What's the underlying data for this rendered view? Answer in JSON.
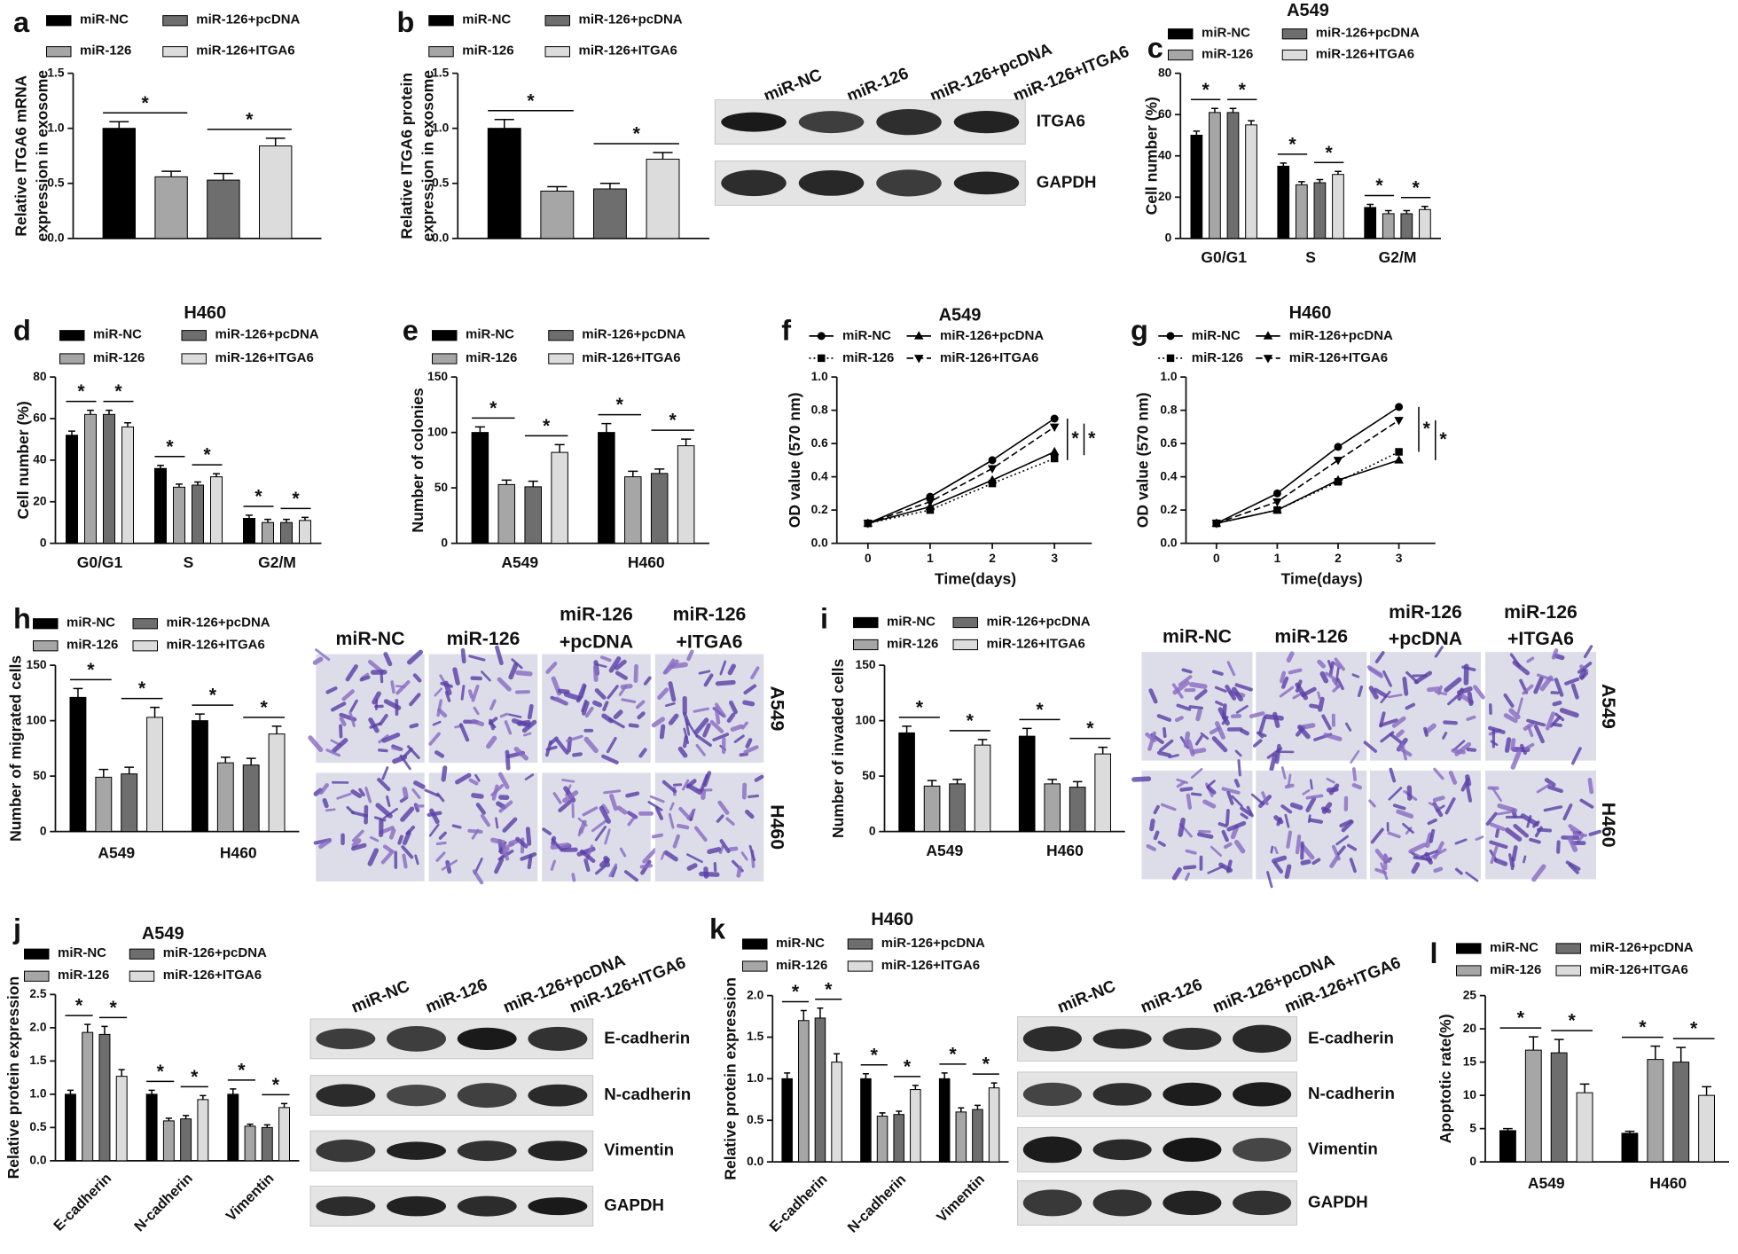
{
  "chart_data": [
    {
      "type": "bar",
      "panel_label": "a",
      "y_label": [
        "Relative ITGA6 mRNA",
        "expression in exosome"
      ],
      "categories": [
        null
      ],
      "series": [
        {
          "name": "miR-NC",
          "color": "#000000",
          "values": [
            1.0
          ],
          "errors": [
            0.06
          ]
        },
        {
          "name": "miR-126",
          "color": "#a6a6a6",
          "values": [
            0.56
          ],
          "errors": [
            0.05
          ]
        },
        {
          "name": "miR-126+pcDNA",
          "color": "#6e6e6e",
          "values": [
            0.53
          ],
          "errors": [
            0.06
          ]
        },
        {
          "name": "miR-126+ITGA6",
          "color": "#dcdcdc",
          "values": [
            0.84
          ],
          "errors": [
            0.07
          ]
        }
      ],
      "ylim": [
        0,
        1.5
      ],
      "yticks": [
        {
          "value": 0,
          "label": "0.0"
        },
        0.5,
        {
          "value": 1,
          "label": "1.0"
        },
        1.5
      ],
      "significance_label": "*"
    },
    {
      "type": "bar",
      "panel_label": "b",
      "y_label": [
        "Relative ITGA6 protein",
        "expression in exosome"
      ],
      "categories": [
        null
      ],
      "series": [
        {
          "name": "miR-NC",
          "color": "#000000",
          "values": [
            1.0
          ],
          "errors": [
            0.08
          ]
        },
        {
          "name": "miR-126",
          "color": "#a6a6a6",
          "values": [
            0.43
          ],
          "errors": [
            0.04
          ]
        },
        {
          "name": "miR-126+pcDNA",
          "color": "#6e6e6e",
          "values": [
            0.45
          ],
          "errors": [
            0.05
          ]
        },
        {
          "name": "miR-126+ITGA6",
          "color": "#dcdcdc",
          "values": [
            0.72
          ],
          "errors": [
            0.06
          ]
        }
      ],
      "ylim": [
        0,
        1.5
      ],
      "yticks": [
        {
          "value": 0,
          "label": "0.0"
        },
        0.5,
        {
          "value": 1,
          "label": "1.0"
        },
        1.5
      ],
      "significance_label": "*",
      "blot": {
        "lanes": [
          "miR-NC",
          "miR-126",
          "miR-126+pcDNA",
          "miR-126+ITGA6"
        ],
        "bands": [
          "ITGA6",
          "GAPDH"
        ]
      }
    },
    {
      "type": "bar",
      "panel_label": "c",
      "title": "A549",
      "y_label": "Cell number (%)",
      "categories": [
        "G0/G1",
        "S",
        "G2/M"
      ],
      "series": [
        {
          "name": "miR-NC",
          "color": "#000000",
          "values": [
            50,
            35,
            15
          ],
          "errors": [
            2,
            1.5,
            1.5
          ]
        },
        {
          "name": "miR-126",
          "color": "#a6a6a6",
          "values": [
            61,
            26,
            12
          ],
          "errors": [
            2,
            1.5,
            1.5
          ]
        },
        {
          "name": "miR-126+pcDNA",
          "color": "#6e6e6e",
          "values": [
            61,
            27,
            12
          ],
          "errors": [
            2,
            1.5,
            1.5
          ]
        },
        {
          "name": "miR-126+ITGA6",
          "color": "#dcdcdc",
          "values": [
            55,
            31,
            14
          ],
          "errors": [
            2,
            1.5,
            1.5
          ]
        }
      ],
      "ylim": [
        0,
        80
      ],
      "yticks": [
        0,
        20,
        40,
        60,
        80
      ],
      "significance_label": "*"
    },
    {
      "type": "bar",
      "panel_label": "d",
      "title": "H460",
      "y_label": "Cell number (%)",
      "categories": [
        "G0/G1",
        "S",
        "G2/M"
      ],
      "series": [
        {
          "name": "miR-NC",
          "color": "#000000",
          "values": [
            52,
            36,
            12
          ],
          "errors": [
            2,
            1.5,
            1.5
          ]
        },
        {
          "name": "miR-126",
          "color": "#a6a6a6",
          "values": [
            62,
            27,
            10
          ],
          "errors": [
            2,
            1.5,
            1.5
          ]
        },
        {
          "name": "miR-126+pcDNA",
          "color": "#6e6e6e",
          "values": [
            62,
            28,
            10
          ],
          "errors": [
            2,
            1.5,
            1.5
          ]
        },
        {
          "name": "miR-126+ITGA6",
          "color": "#dcdcdc",
          "values": [
            56,
            32,
            11
          ],
          "errors": [
            2,
            1.5,
            1.5
          ]
        }
      ],
      "ylim": [
        0,
        80
      ],
      "yticks": [
        0,
        20,
        40,
        60,
        80
      ],
      "significance_label": "*"
    },
    {
      "type": "bar",
      "panel_label": "e",
      "y_label": "Number of colonies",
      "categories": [
        "A549",
        "H460"
      ],
      "series": [
        {
          "name": "miR-NC",
          "color": "#000000",
          "values": [
            100,
            100
          ],
          "errors": [
            5,
            8
          ]
        },
        {
          "name": "miR-126",
          "color": "#a6a6a6",
          "values": [
            53,
            60
          ],
          "errors": [
            4,
            5
          ]
        },
        {
          "name": "miR-126+pcDNA",
          "color": "#6e6e6e",
          "values": [
            51,
            63
          ],
          "errors": [
            5,
            4
          ]
        },
        {
          "name": "miR-126+ITGA6",
          "color": "#dcdcdc",
          "values": [
            82,
            88
          ],
          "errors": [
            7,
            6
          ]
        }
      ],
      "ylim": [
        0,
        150
      ],
      "yticks": [
        0,
        50,
        100,
        150
      ],
      "significance_label": "*"
    },
    {
      "type": "line",
      "panel_label": "f",
      "title": "A549",
      "y_label": "OD value (570 nm)",
      "x_label": "Time(days)",
      "x": [
        0,
        1,
        2,
        3
      ],
      "series": [
        {
          "name": "miR-NC",
          "color": "#000000",
          "marker": "circle",
          "linestyle": "solid",
          "values": [
            0.12,
            0.28,
            0.5,
            0.75
          ]
        },
        {
          "name": "miR-126",
          "color": "#000000",
          "marker": "square",
          "linestyle": "dotted",
          "values": [
            0.12,
            0.2,
            0.36,
            0.51
          ]
        },
        {
          "name": "miR-126+pcDNA",
          "color": "#000000",
          "marker": "triangle",
          "linestyle": "solid",
          "values": [
            0.12,
            0.22,
            0.38,
            0.55
          ]
        },
        {
          "name": "miR-126+ITGA6",
          "color": "#000000",
          "marker": "triangle-down",
          "linestyle": "dashed",
          "values": [
            0.12,
            0.25,
            0.45,
            0.7
          ]
        }
      ],
      "xlim": [
        -0.5,
        3.6
      ],
      "xticks": [
        0,
        1,
        2,
        3
      ],
      "ylim": [
        0,
        1
      ],
      "yticks": [
        {
          "value": 0,
          "label": "0.0"
        },
        0.2,
        0.4,
        0.6,
        0.8,
        {
          "value": 1,
          "label": "1.0"
        }
      ],
      "significance_label": "*"
    },
    {
      "type": "line",
      "panel_label": "g",
      "title": "H460",
      "y_label": "OD value (570 nm)",
      "x_label": "Time(days)",
      "x": [
        0,
        1,
        2,
        3
      ],
      "series": [
        {
          "name": "miR-NC",
          "color": "#000000",
          "marker": "circle",
          "linestyle": "solid",
          "values": [
            0.12,
            0.3,
            0.58,
            0.82
          ]
        },
        {
          "name": "miR-126",
          "color": "#000000",
          "marker": "square",
          "linestyle": "dotted",
          "values": [
            0.12,
            0.2,
            0.37,
            0.55
          ]
        },
        {
          "name": "miR-126+pcDNA",
          "color": "#000000",
          "marker": "triangle",
          "linestyle": "solid",
          "values": [
            0.12,
            0.2,
            0.38,
            0.5
          ]
        },
        {
          "name": "miR-126+ITGA6",
          "color": "#000000",
          "marker": "triangle-down",
          "linestyle": "dashed",
          "values": [
            0.12,
            0.25,
            0.5,
            0.74
          ]
        }
      ],
      "xlim": [
        -0.5,
        3.6
      ],
      "xticks": [
        0,
        1,
        2,
        3
      ],
      "ylim": [
        0,
        1
      ],
      "yticks": [
        {
          "value": 0,
          "label": "0.0"
        },
        0.2,
        0.4,
        0.6,
        0.8,
        {
          "value": 1,
          "label": "1.0"
        }
      ],
      "significance_label": "*"
    },
    {
      "type": "bar",
      "panel_label": "h",
      "y_label": "Number of migrated cells",
      "categories": [
        "A549",
        "H460"
      ],
      "series": [
        {
          "name": "miR-NC",
          "color": "#000000",
          "values": [
            121,
            100
          ],
          "errors": [
            8,
            6
          ]
        },
        {
          "name": "miR-126",
          "color": "#a6a6a6",
          "values": [
            49,
            62
          ],
          "errors": [
            7,
            5
          ]
        },
        {
          "name": "miR-126+pcDNA",
          "color": "#6e6e6e",
          "values": [
            52,
            60
          ],
          "errors": [
            6,
            6
          ]
        },
        {
          "name": "miR-126+ITGA6",
          "color": "#dcdcdc",
          "values": [
            103,
            88
          ],
          "errors": [
            9,
            7
          ]
        }
      ],
      "ylim": [
        0,
        150
      ],
      "yticks": [
        0,
        50,
        100,
        150
      ],
      "significance_label": "*",
      "micrographs": {
        "columns": [
          [
            "miR-NC"
          ],
          [
            "miR-126"
          ],
          [
            "miR-126",
            "+pcDNA"
          ],
          [
            "miR-126",
            "+ITGA6"
          ]
        ],
        "rows": [
          "A549",
          "H460"
        ]
      }
    },
    {
      "type": "bar",
      "panel_label": "i",
      "y_label": "Number of invaded cells",
      "categories": [
        "A549",
        "H460"
      ],
      "series": [
        {
          "name": "miR-NC",
          "color": "#000000",
          "values": [
            89,
            86
          ],
          "errors": [
            6,
            7
          ]
        },
        {
          "name": "miR-126",
          "color": "#a6a6a6",
          "values": [
            41,
            43
          ],
          "errors": [
            5,
            4
          ]
        },
        {
          "name": "miR-126+pcDNA",
          "color": "#6e6e6e",
          "values": [
            43,
            40
          ],
          "errors": [
            4,
            5
          ]
        },
        {
          "name": "miR-126+ITGA6",
          "color": "#dcdcdc",
          "values": [
            78,
            70
          ],
          "errors": [
            5,
            6
          ]
        }
      ],
      "ylim": [
        0,
        150
      ],
      "yticks": [
        0,
        50,
        100,
        150
      ],
      "significance_label": "*",
      "micrographs": {
        "columns": [
          [
            "miR-NC"
          ],
          [
            "miR-126"
          ],
          [
            "miR-126",
            "+pcDNA"
          ],
          [
            "miR-126",
            "+ITGA6"
          ]
        ],
        "rows": [
          "A549",
          "H460"
        ]
      }
    },
    {
      "type": "bar",
      "panel_label": "j",
      "title": "A549",
      "y_label": "Relative protein expression",
      "categories": [
        "E-cadherin",
        "N-cadherin",
        "Vimentin"
      ],
      "series": [
        {
          "name": "miR-NC",
          "color": "#000000",
          "values": [
            1.0,
            1.0,
            1.0
          ],
          "errors": [
            0.06,
            0.06,
            0.08
          ]
        },
        {
          "name": "miR-126",
          "color": "#a6a6a6",
          "values": [
            1.93,
            0.6,
            0.52
          ],
          "errors": [
            0.12,
            0.04,
            0.03
          ]
        },
        {
          "name": "miR-126+pcDNA",
          "color": "#6e6e6e",
          "values": [
            1.9,
            0.63,
            0.5
          ],
          "errors": [
            0.12,
            0.05,
            0.04
          ]
        },
        {
          "name": "miR-126+ITGA6",
          "color": "#dcdcdc",
          "values": [
            1.27,
            0.92,
            0.8
          ],
          "errors": [
            0.1,
            0.06,
            0.06
          ]
        }
      ],
      "ylim": [
        0,
        2.5
      ],
      "yticks": [
        {
          "value": 0,
          "label": "0.0"
        },
        0.5,
        {
          "value": 1,
          "label": "1.0"
        },
        1.5,
        {
          "value": 2,
          "label": "2.0"
        },
        2.5
      ],
      "significance_label": "*",
      "blot": {
        "lanes": [
          "miR-NC",
          "miR-126",
          "miR-126+pcDNA",
          "miR-126+ITGA6"
        ],
        "bands": [
          "E-cadherin",
          "N-cadherin",
          "Vimentin",
          "GAPDH"
        ]
      }
    },
    {
      "type": "bar",
      "panel_label": "k",
      "title": "H460",
      "y_label": "Relative protein expression",
      "categories": [
        "E-cadherin",
        "N-cadherin",
        "Vimentin"
      ],
      "series": [
        {
          "name": "miR-NC",
          "color": "#000000",
          "values": [
            1.0,
            1.0,
            1.0
          ],
          "errors": [
            0.07,
            0.06,
            0.07
          ]
        },
        {
          "name": "miR-126",
          "color": "#a6a6a6",
          "values": [
            1.7,
            0.55,
            0.6
          ],
          "errors": [
            0.12,
            0.04,
            0.05
          ]
        },
        {
          "name": "miR-126+pcDNA",
          "color": "#6e6e6e",
          "values": [
            1.73,
            0.57,
            0.63
          ],
          "errors": [
            0.12,
            0.04,
            0.05
          ]
        },
        {
          "name": "miR-126+ITGA6",
          "color": "#dcdcdc",
          "values": [
            1.2,
            0.87,
            0.89
          ],
          "errors": [
            0.1,
            0.05,
            0.06
          ]
        }
      ],
      "ylim": [
        0,
        2
      ],
      "yticks": [
        {
          "value": 0,
          "label": "0.0"
        },
        0.5,
        {
          "value": 1,
          "label": "1.0"
        },
        1.5,
        {
          "value": 2,
          "label": "2.0"
        }
      ],
      "significance_label": "*",
      "blot": {
        "lanes": [
          "miR-NC",
          "miR-126",
          "miR-126+pcDNA",
          "miR-126+ITGA6"
        ],
        "bands": [
          "E-cadherin",
          "N-cadherin",
          "Vimentin",
          "GAPDH"
        ]
      }
    },
    {
      "type": "bar",
      "panel_label": "l",
      "y_label": "Apoptotic rate(%)",
      "categories": [
        "A549",
        "H460"
      ],
      "series": [
        {
          "name": "miR-NC",
          "color": "#000000",
          "values": [
            4.7,
            4.3
          ],
          "errors": [
            0.3,
            0.3
          ]
        },
        {
          "name": "miR-126",
          "color": "#a6a6a6",
          "values": [
            16.8,
            15.4
          ],
          "errors": [
            2,
            2
          ]
        },
        {
          "name": "miR-126+pcDNA",
          "color": "#6e6e6e",
          "values": [
            16.4,
            15
          ],
          "errors": [
            2,
            2.2
          ]
        },
        {
          "name": "miR-126+ITGA6",
          "color": "#dcdcdc",
          "values": [
            10.4,
            10
          ],
          "errors": [
            1.3,
            1.3
          ]
        }
      ],
      "ylim": [
        0,
        25
      ],
      "yticks": [
        0,
        5,
        10,
        15,
        20,
        25
      ],
      "significance_label": "*"
    }
  ]
}
